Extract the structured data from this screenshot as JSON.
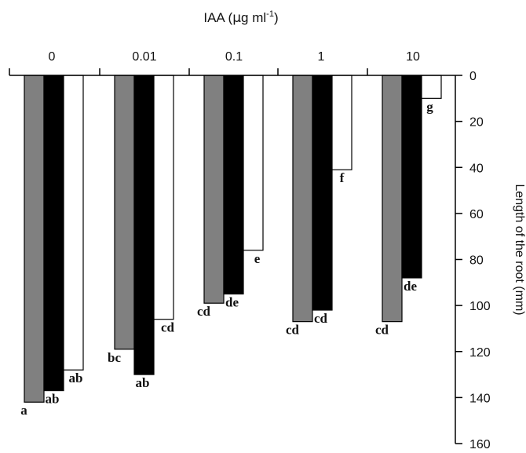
{
  "chart_data": {
    "type": "bar",
    "title": {
      "prefix": "IAA (",
      "mu": "µ",
      "unit": "g ml",
      "sup": "-1",
      "suffix": ")"
    },
    "categories": [
      "0",
      "0.01",
      "0.1",
      "1",
      "10"
    ],
    "series": [
      {
        "color": "#808080",
        "values": [
          142,
          119,
          99,
          107,
          107
        ],
        "letters": [
          "a",
          "bc",
          "cd",
          "cd",
          "cd"
        ]
      },
      {
        "color": "#000000",
        "values": [
          137,
          130,
          95,
          102,
          88
        ],
        "letters": [
          "ab",
          "ab",
          "de",
          "cd",
          "de"
        ]
      },
      {
        "color": "#ffffff",
        "values": [
          128,
          106,
          76,
          41,
          10
        ],
        "letters": [
          "ab",
          "cd",
          "e",
          "f",
          "g"
        ]
      }
    ],
    "ylabel": "Length of the root (mm)",
    "ylim": [
      0,
      160
    ],
    "yticks": [
      0,
      20,
      40,
      60,
      80,
      100,
      120,
      140,
      160
    ],
    "y_inverted": true,
    "x_axis_position": "top",
    "y_axis_position": "right",
    "grid": false,
    "legend": "none"
  }
}
